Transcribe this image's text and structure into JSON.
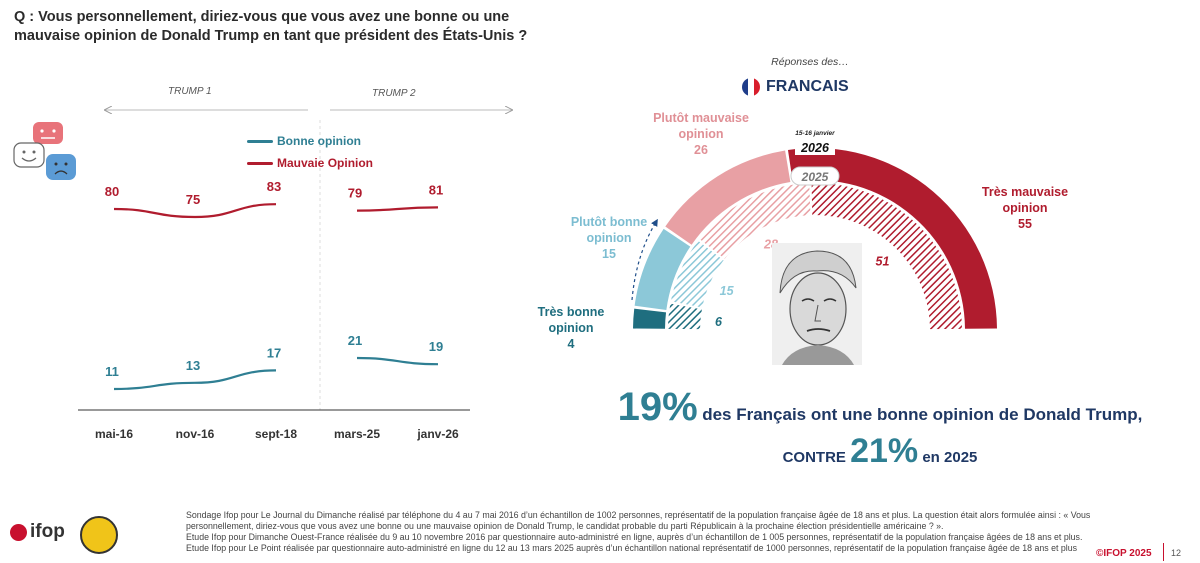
{
  "question": "Q : Vous personnellement, diriez-vous que vous avez une bonne ou une mauvaise opinion de Donald Trump en tant que président des États-Unis ?",
  "periods": [
    "TRUMP 1",
    "TRUMP 2"
  ],
  "legend": {
    "good": "Bonne opinion",
    "bad": "Mauvaie Opinion"
  },
  "colors": {
    "good": "#2f7f93",
    "bad": "#b01c2e",
    "tres_bonne": "#1f6e7f",
    "plutot_bonne": "#8cc8d8",
    "plutot_mauvaise": "#e8a0a4",
    "tres_mauvaise": "#b01c2e"
  },
  "chart_data": [
    {
      "type": "line",
      "categories": [
        "mai-16",
        "nov-16",
        "sept-18",
        "mars-25",
        "janv-26"
      ],
      "series": [
        {
          "name": "Bonne opinion",
          "values": [
            11,
            13,
            17,
            21,
            19
          ]
        },
        {
          "name": "Mauvaie Opinion",
          "values": [
            80,
            75,
            83,
            79,
            81
          ]
        }
      ]
    },
    {
      "type": "pie",
      "series": [
        {
          "name": "2026",
          "values": [
            4,
            15,
            26,
            55
          ]
        },
        {
          "name": "2025",
          "values": [
            6,
            15,
            28,
            51
          ]
        }
      ],
      "categories": [
        "Très bonne opinion",
        "Plutôt bonne opinion",
        "Plutôt mauvaise opinion",
        "Très mauvaise opinion"
      ]
    }
  ],
  "rainbow": {
    "responses_title": "Réponses des…",
    "population": "FRANCAIS",
    "year_current": "2026",
    "year_current_note": "15-16 janvier",
    "year_previous": "2025",
    "labels": {
      "tres_bonne": [
        "Très bonne",
        "opinion"
      ],
      "plutot_bonne": [
        "Plutôt bonne",
        "opinion"
      ],
      "plutot_mauvaise": [
        "Plutôt mauvaise",
        "opinion"
      ],
      "tres_mauvaise": [
        "Très mauvaise",
        "opinion"
      ]
    }
  },
  "headline": {
    "pct": "19%",
    "text": "des Français ont une bonne opinion de Donald Trump,",
    "contre": "CONTRE",
    "pct2": "21%",
    "year_text": "en 2025"
  },
  "footnote": [
    "Sondage Ifop pour Le Journal du Dimanche réalisé par téléphone du 4 au 7 mai 2016 d’un échantillon de 1002 personnes, représentatif de la population française âgée de 18 ans et plus. La question était alors formulée ainsi : « Vous personnellement, diriez-vous que vous avez une bonne ou une mauvaise opinion de Donald Trump, le candidat probable du parti Républicain à la prochaine élection présidentielle américaine ? ».",
    "Etude Ifop pour Dimanche Ouest-France réalisée du 9 au 10 novembre 2016 par questionnaire auto-administré en ligne, auprès d’un échantillon de 1 005 personnes, représentatif de la population française âgées de 18 ans et plus.",
    "Etude Ifop pour Le Point réalisée par questionnaire auto-administré en ligne du 12 au 13 mars 2025 auprès d’un échantillon national représentatif de 1000 personnes, représentatif de la population française âgée de 18 ans et plus"
  ],
  "brand": "ifop",
  "copyright": "©IFOP 2025",
  "page_number": "12"
}
